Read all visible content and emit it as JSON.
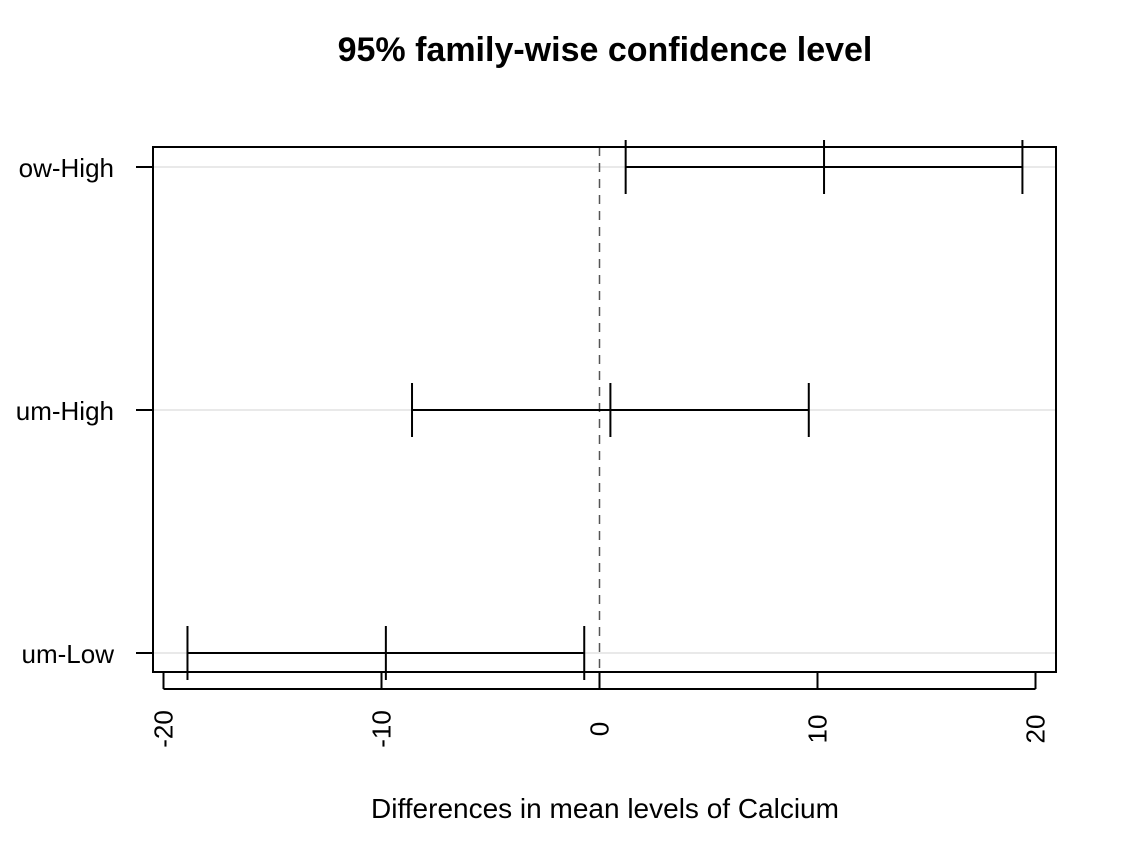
{
  "chart_data": {
    "type": "errorbar",
    "title": "95% family-wise confidence level",
    "xlabel": "Differences in mean levels of Calcium",
    "ylabel": "",
    "xlim": [
      -20.5,
      20.5
    ],
    "x_ticks": [
      -20,
      -10,
      0,
      10,
      20
    ],
    "x_tick_labels": [
      "-20",
      "-10",
      "0",
      "10",
      "20"
    ],
    "reference_line": 0,
    "grid": "horizontal",
    "comparisons": [
      {
        "label": "ow-High",
        "lower": 1.2,
        "estimate": 10.3,
        "upper": 19.4
      },
      {
        "label": "um-High",
        "lower": -8.6,
        "estimate": 0.5,
        "upper": 9.6
      },
      {
        "label": "um-Low",
        "lower": -18.9,
        "estimate": -9.8,
        "upper": -0.7
      }
    ]
  }
}
